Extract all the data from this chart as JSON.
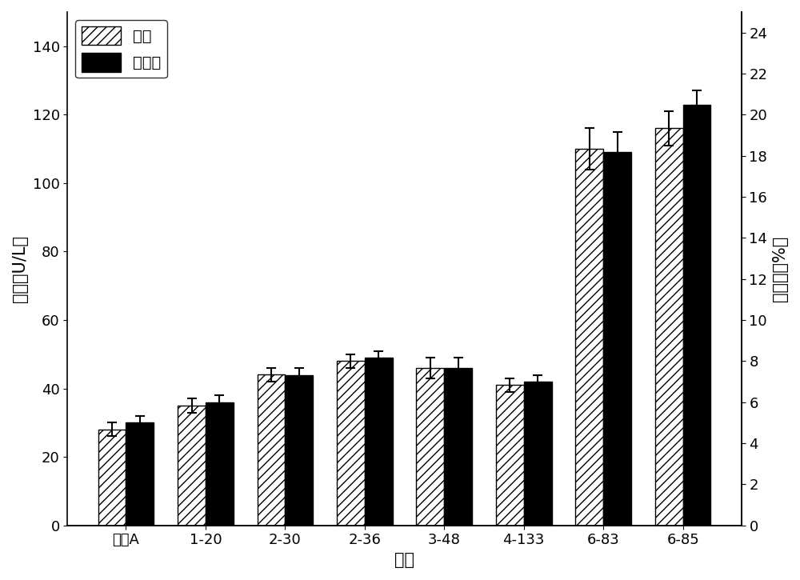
{
  "categories": [
    "亲株A",
    "1-20",
    "2-30",
    "2-36",
    "3-48",
    "4-133",
    "6-83",
    "6-85"
  ],
  "enzyme_activity": [
    28,
    35,
    44,
    48,
    46,
    41,
    110,
    116
  ],
  "conversion_rate": [
    5.0,
    6.0,
    7.33,
    8.17,
    7.67,
    7.0,
    18.17,
    20.5
  ],
  "enzyme_err": [
    2,
    2,
    2,
    2,
    3,
    2,
    6,
    5
  ],
  "conv_err": [
    0.33,
    0.33,
    0.33,
    0.33,
    0.5,
    0.33,
    1.0,
    0.67
  ],
  "left_ylabel": "醂活（U/L）",
  "right_ylabel": "转化率（%）",
  "xlabel": "菌株",
  "left_ylim": [
    0,
    150
  ],
  "left_yticks": [
    0,
    20,
    40,
    60,
    80,
    100,
    120,
    140
  ],
  "right_ylim": [
    0,
    25
  ],
  "right_yticks": [
    0,
    2,
    4,
    6,
    8,
    10,
    12,
    14,
    16,
    18,
    20,
    22,
    24
  ],
  "legend_enzyme": "醂活",
  "legend_conv": "转化率",
  "hatch_color": "#000000",
  "hatch_facecolor": "#ffffff",
  "solid_color": "#000000",
  "bar_width": 0.35,
  "background_color": "#ffffff",
  "label_fontsize": 15,
  "tick_fontsize": 13,
  "legend_fontsize": 14
}
